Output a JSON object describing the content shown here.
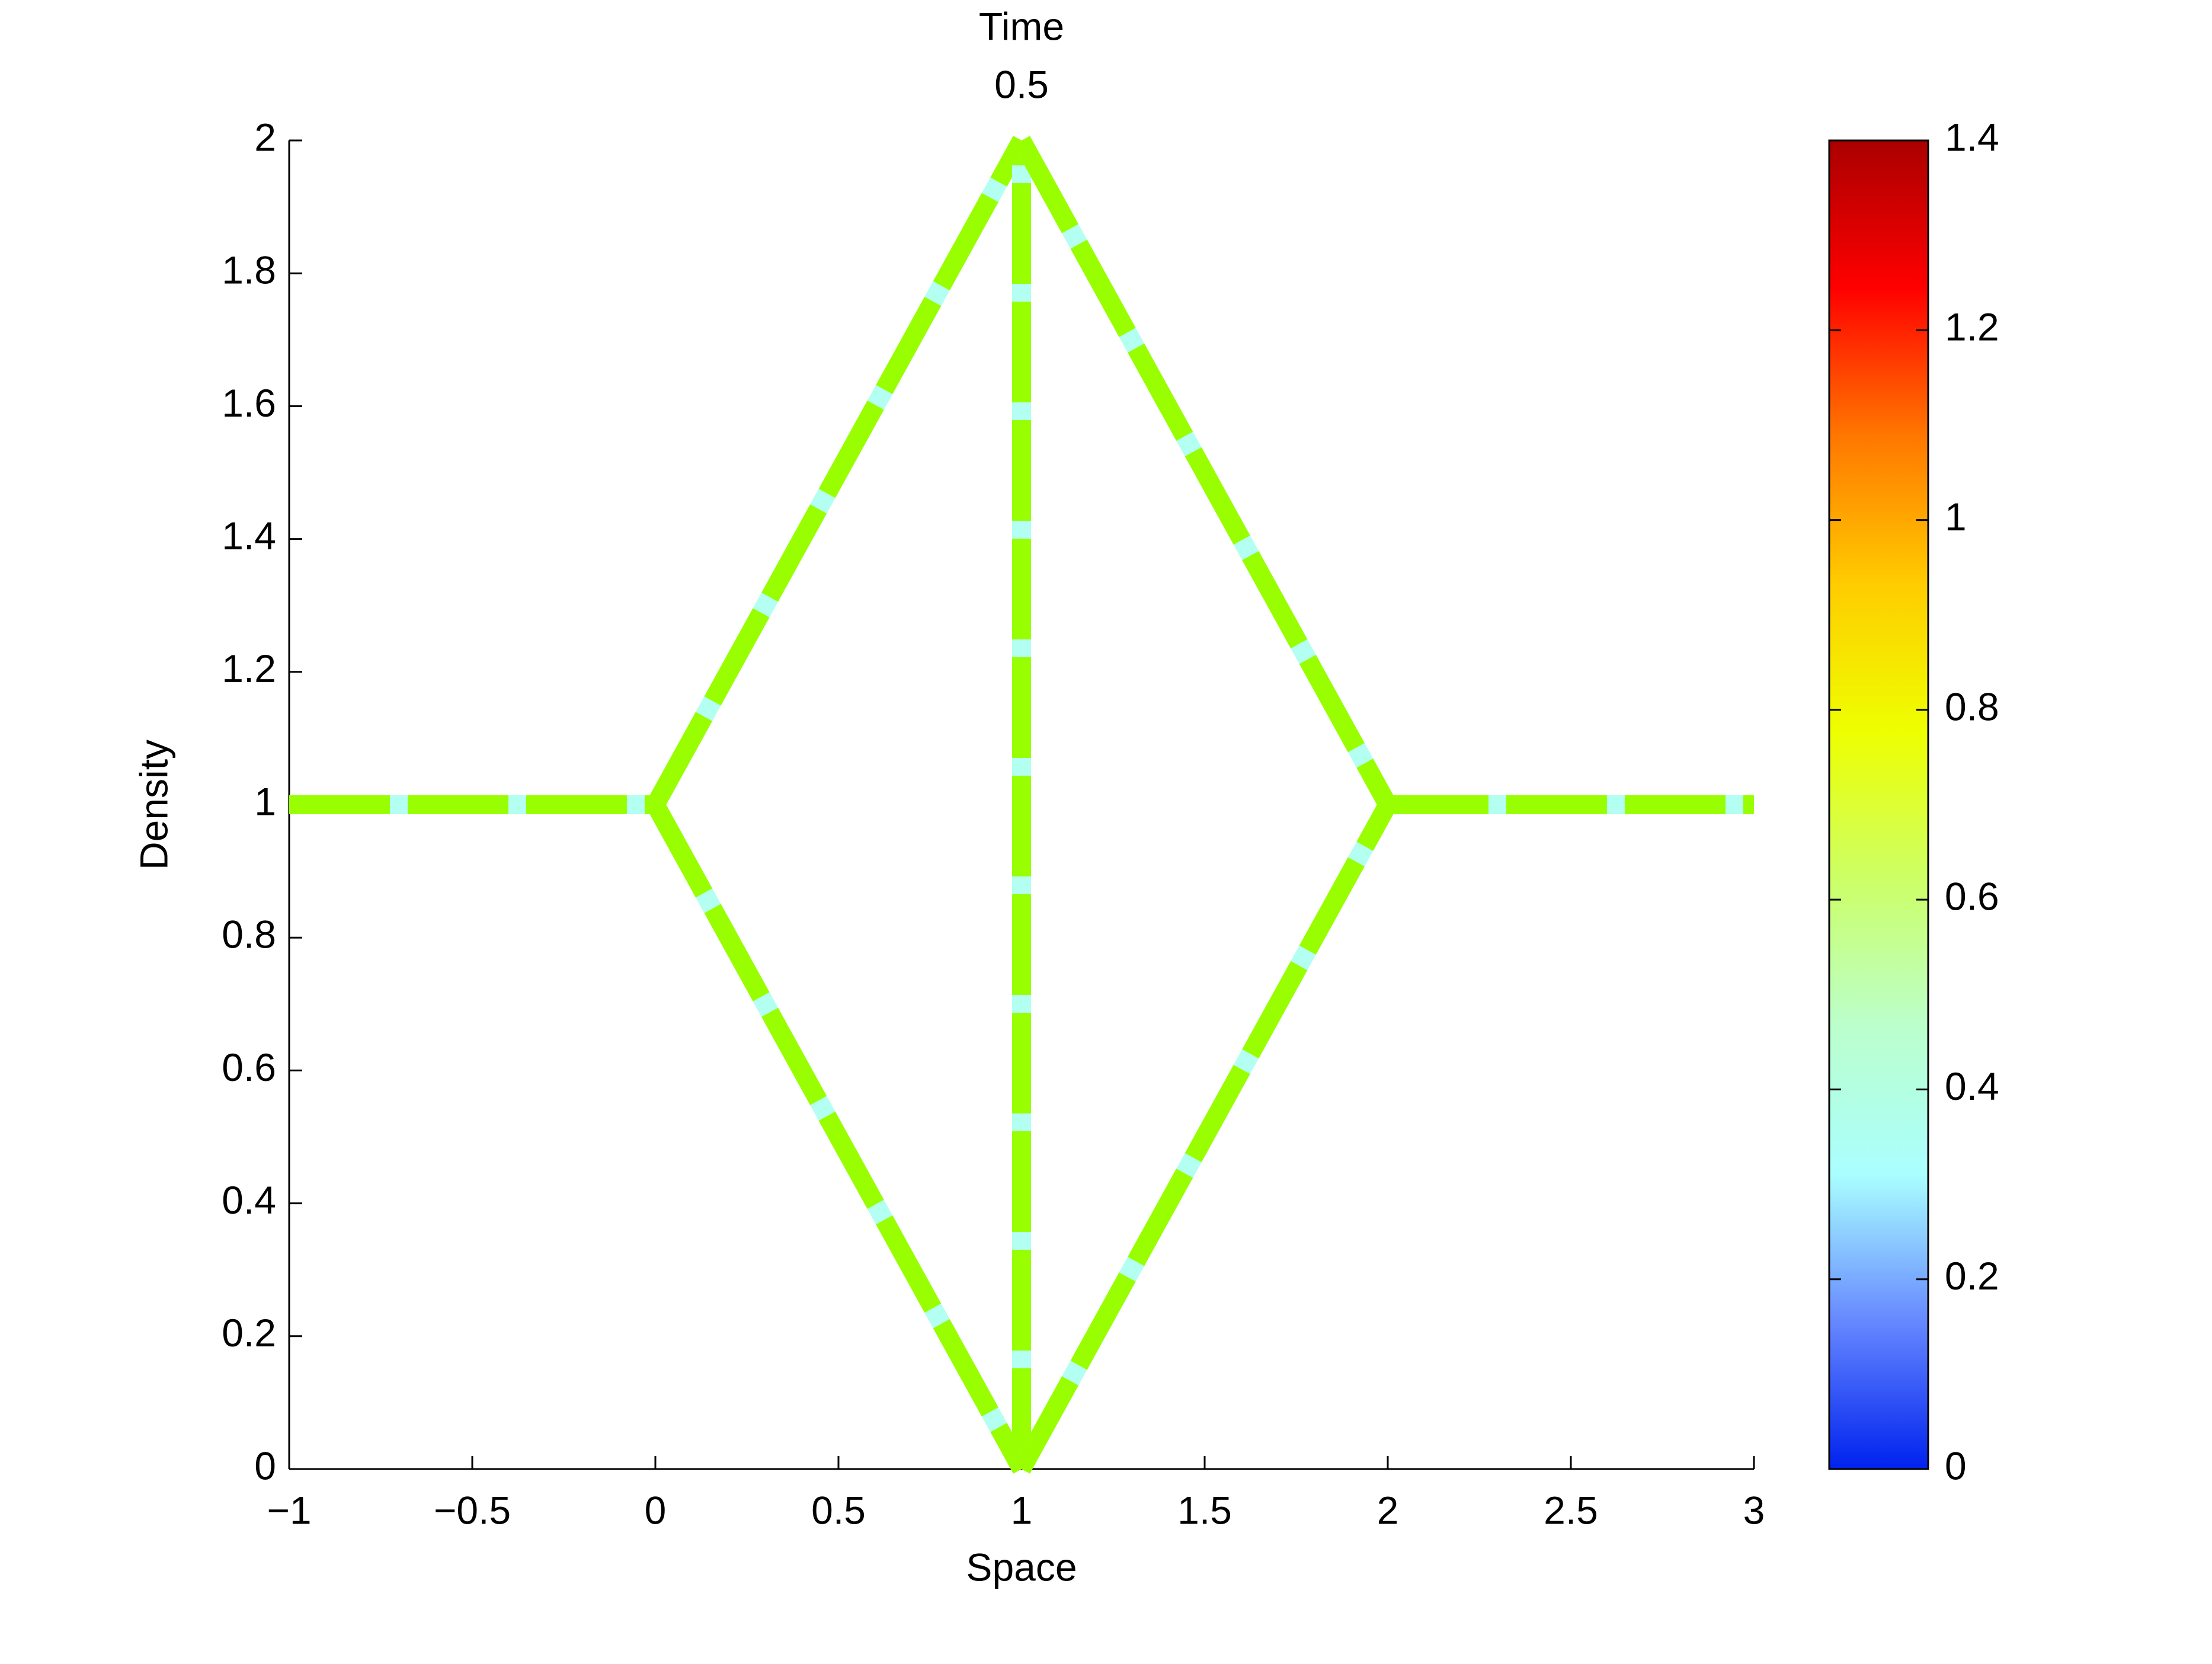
{
  "chart_data": {
    "type": "line",
    "title": "Time",
    "subtitle": "0.5",
    "x_label": "Space",
    "y_label": "Density",
    "xlim": [
      -1,
      3
    ],
    "ylim": [
      0,
      2
    ],
    "xticks": [
      {
        "value": -1,
        "label": "−1"
      },
      {
        "value": -0.5,
        "label": "−0.5"
      },
      0,
      0.5,
      1,
      1.5,
      2,
      2.5,
      3
    ],
    "yticks": [
      0,
      0.2,
      0.4,
      0.6,
      0.8,
      1,
      1.2,
      1.4,
      1.6,
      1.8,
      2
    ],
    "grid": false,
    "dash_colors": [
      "#99ff00",
      "#b3fff2"
    ],
    "series": [
      {
        "x": [
          -1,
          0
        ],
        "values": [
          1,
          1
        ]
      },
      {
        "x": [
          0,
          1
        ],
        "values": [
          1,
          2
        ]
      },
      {
        "x": [
          0,
          1
        ],
        "values": [
          1,
          0
        ]
      },
      {
        "x": [
          1,
          1
        ],
        "values": [
          0,
          2
        ]
      },
      {
        "x": [
          1,
          2
        ],
        "values": [
          2,
          1
        ]
      },
      {
        "x": [
          1,
          2
        ],
        "values": [
          0,
          1
        ]
      },
      {
        "x": [
          2,
          3
        ],
        "values": [
          1,
          1
        ]
      }
    ],
    "colorbar": {
      "lim": [
        0,
        1.4
      ],
      "ticks": [
        0,
        0.2,
        0.4,
        0.6,
        0.8,
        1,
        1.2,
        1.4
      ],
      "colormap": [
        "#0022ee",
        "#6688ff",
        "#aaffff",
        "#bbffcc",
        "#ccff66",
        "#eeff00",
        "#ffcc00",
        "#ff7700",
        "#ff0000",
        "#aa0000"
      ]
    }
  }
}
